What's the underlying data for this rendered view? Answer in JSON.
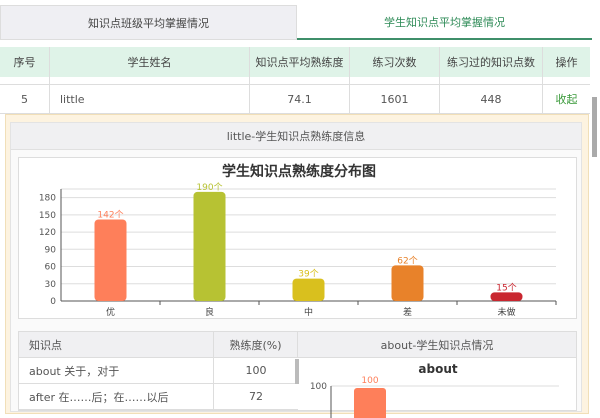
{
  "tabs": [
    {
      "label": "知识点班级平均掌握情况",
      "active": false
    },
    {
      "label": "学生知识点平均掌握情况",
      "active": true
    }
  ],
  "table": {
    "headers": [
      "序号",
      "学生姓名",
      "知识点平均熟练度",
      "练习次数",
      "练习过的知识点数",
      "操作"
    ],
    "row": {
      "index": "5",
      "name": "little",
      "avg": "74.1",
      "count": "1601",
      "points": "448",
      "action": "收起"
    }
  },
  "detail": {
    "title": "little-学生知识点熟练度信息"
  },
  "chart_data": {
    "type": "bar",
    "title": "学生知识点熟练度分布图",
    "categories": [
      "优",
      "良",
      "中",
      "差",
      "未做"
    ],
    "values": [
      142,
      190,
      39,
      62,
      15
    ],
    "labels": [
      "142个",
      "190个",
      "39个",
      "62个",
      "15个"
    ],
    "colors": [
      "#fe7f5a",
      "#b7c233",
      "#d9c01e",
      "#e8822a",
      "#c9262f"
    ],
    "ylim": [
      0,
      195
    ],
    "yticks": [
      0,
      30,
      60,
      90,
      120,
      150,
      180
    ],
    "grid": true
  },
  "knowledge": {
    "headers": [
      "知识点",
      "熟练度(%)"
    ],
    "rows": [
      {
        "name": "about 关于，对于",
        "value": "100"
      },
      {
        "name": "after 在……后；在……以后",
        "value": "72"
      }
    ],
    "side_title": "about-学生知识点情况",
    "side_chart": {
      "type": "bar",
      "title": "about",
      "ytick": "100",
      "value": 100,
      "label": "100",
      "color": "#fe7f5a"
    }
  },
  "colors": {
    "accent": "#2e8b57",
    "header_bg": "#dff3e8",
    "panel_bg": "#fdf3e0"
  }
}
